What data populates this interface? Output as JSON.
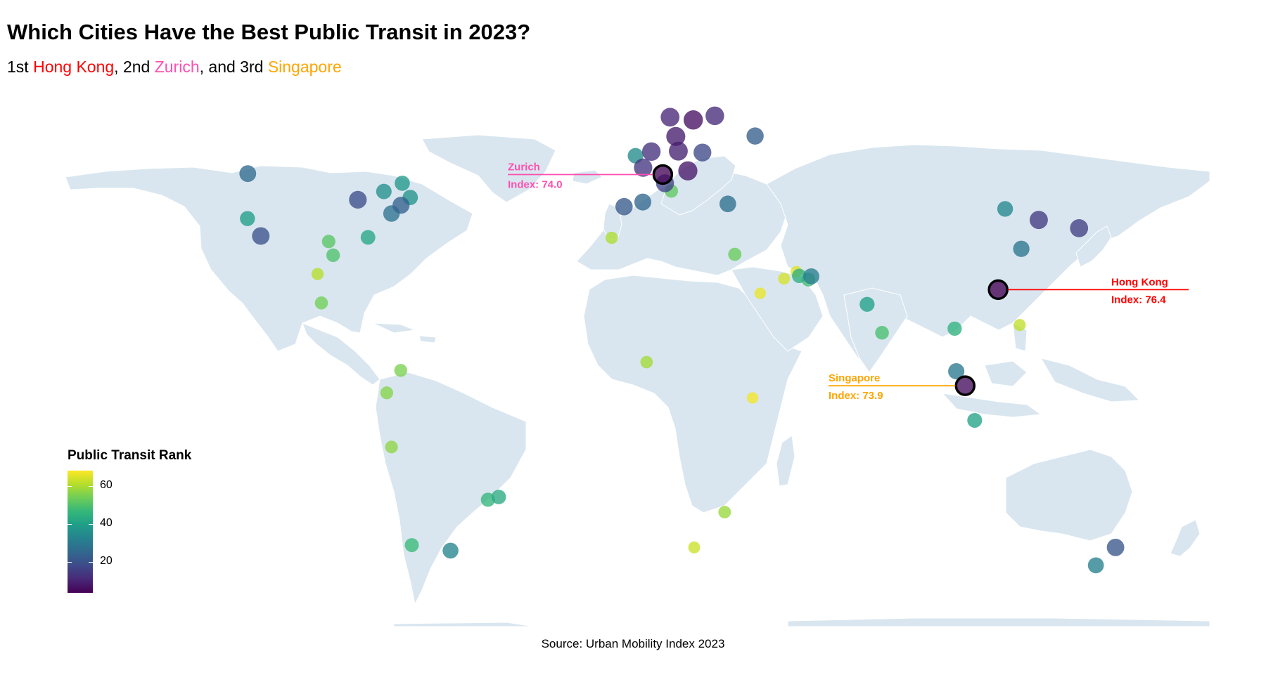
{
  "title": "Which Cities Have the Best Public Transit in 2023?",
  "subtitle": {
    "p1": "1st ",
    "first": "Hong Kong",
    "p2": ", 2nd ",
    "second": "Zurich",
    "p3": ", and 3rd ",
    "third": "Singapore"
  },
  "colors": {
    "first": "#ff0000",
    "second": "#ff4fb0",
    "third": "#ffa500",
    "land": "#d9e6ef",
    "highlight_ring": "#000000"
  },
  "legend": {
    "title": "Public Transit Rank",
    "ticks": [
      "60",
      "40",
      "20"
    ],
    "tick_values": [
      60,
      40,
      20
    ],
    "range": [
      1,
      65
    ],
    "palette": "viridis"
  },
  "source": "Source: Urban Mobility Index 2023",
  "annotations": [
    {
      "label": "Hong Kong",
      "index_text": "Index: 76.4",
      "lat": 22.3,
      "lon": 114.2,
      "color_key": "first"
    },
    {
      "label": "Zurich",
      "index_text": "Index: 74.0",
      "lat": 47.4,
      "lon": 8.5,
      "color_key": "second"
    },
    {
      "label": "Singapore",
      "index_text": "Index: 73.9",
      "lat": 1.35,
      "lon": 103.8,
      "color_key": "third"
    }
  ],
  "chart_data": {
    "type": "scatter",
    "x_variable": "longitude",
    "y_variable": "latitude",
    "color_variable": "Public Transit Rank",
    "points": [
      {
        "lat": 22.3,
        "lon": 114.2,
        "rank": 1
      },
      {
        "lat": 47.4,
        "lon": 8.5,
        "rank": 2
      },
      {
        "lat": 1.35,
        "lon": 103.8,
        "rank": 3
      },
      {
        "lat": 59.3,
        "lon": 18.1,
        "rank": 4
      },
      {
        "lat": 48.2,
        "lon": 16.4,
        "rank": 5
      },
      {
        "lat": 55.7,
        "lon": 12.6,
        "rank": 6
      },
      {
        "lat": 52.5,
        "lon": 13.4,
        "rank": 7
      },
      {
        "lat": 59.9,
        "lon": 10.8,
        "rank": 8
      },
      {
        "lat": 60.2,
        "lon": 24.9,
        "rank": 9
      },
      {
        "lat": 52.4,
        "lon": 4.9,
        "rank": 10
      },
      {
        "lat": 48.9,
        "lon": 2.3,
        "rank": 11
      },
      {
        "lat": 37.5,
        "lon": 127.0,
        "rank": 12
      },
      {
        "lat": 35.7,
        "lon": 139.7,
        "rank": 13
      },
      {
        "lat": 45.5,
        "lon": 9.2,
        "rank": 14
      },
      {
        "lat": 52.2,
        "lon": 21.0,
        "rank": 15
      },
      {
        "lat": 41.9,
        "lon": -87.6,
        "rank": 16
      },
      {
        "lat": 34.0,
        "lon": -118.2,
        "rank": 17
      },
      {
        "lat": -33.9,
        "lon": 151.2,
        "rank": 18
      },
      {
        "lat": 40.4,
        "lon": -3.7,
        "rank": 19
      },
      {
        "lat": 55.8,
        "lon": 37.6,
        "rank": 20
      },
      {
        "lat": 40.7,
        "lon": -74.0,
        "rank": 21
      },
      {
        "lat": 41.4,
        "lon": 2.2,
        "rank": 22
      },
      {
        "lat": 47.6,
        "lon": -122.3,
        "rank": 23
      },
      {
        "lat": 41.0,
        "lon": 29.0,
        "rank": 24
      },
      {
        "lat": 38.9,
        "lon": -77.0,
        "rank": 25
      },
      {
        "lat": 31.2,
        "lon": 121.5,
        "rank": 26
      },
      {
        "lat": 4.5,
        "lon": 101.0,
        "rank": 27
      },
      {
        "lat": 25.2,
        "lon": 55.3,
        "rank": 28
      },
      {
        "lat": -37.8,
        "lon": 145.0,
        "rank": 29
      },
      {
        "lat": -34.6,
        "lon": -58.4,
        "rank": 30
      },
      {
        "lat": 39.9,
        "lon": 116.4,
        "rank": 31
      },
      {
        "lat": 51.5,
        "lon": -0.1,
        "rank": 32
      },
      {
        "lat": 43.7,
        "lon": -79.4,
        "rank": 33
      },
      {
        "lat": 42.4,
        "lon": -71.1,
        "rank": 34
      },
      {
        "lat": 45.5,
        "lon": -73.6,
        "rank": 35
      },
      {
        "lat": 37.8,
        "lon": -122.4,
        "rank": 36
      },
      {
        "lat": 19.1,
        "lon": 72.9,
        "rank": 37
      },
      {
        "lat": -6.2,
        "lon": 106.8,
        "rank": 38
      },
      {
        "lat": 33.7,
        "lon": -84.4,
        "rank": 39
      },
      {
        "lat": -22.9,
        "lon": -43.2,
        "rank": 40
      },
      {
        "lat": 25.3,
        "lon": 51.5,
        "rank": 41
      },
      {
        "lat": 13.8,
        "lon": 100.5,
        "rank": 42
      },
      {
        "lat": -23.5,
        "lon": -46.6,
        "rank": 43
      },
      {
        "lat": -33.4,
        "lon": -70.6,
        "rank": 44
      },
      {
        "lat": 24.5,
        "lon": 54.4,
        "rank": 45
      },
      {
        "lat": 12.9,
        "lon": 77.6,
        "rank": 46
      },
      {
        "lat": 29.8,
        "lon": -95.4,
        "rank": 47
      },
      {
        "lat": 32.8,
        "lon": -96.8,
        "rank": 48
      },
      {
        "lat": 43.8,
        "lon": 11.2,
        "rank": 49
      },
      {
        "lat": 30.0,
        "lon": 31.2,
        "rank": 50
      },
      {
        "lat": 19.4,
        "lon": -99.1,
        "rank": 51
      },
      {
        "lat": 4.7,
        "lon": -74.1,
        "rank": 52
      },
      {
        "lat": -0.2,
        "lon": -78.5,
        "rank": 53
      },
      {
        "lat": -12.0,
        "lon": -77.0,
        "rank": 54
      },
      {
        "lat": -26.2,
        "lon": 28.0,
        "rank": 55
      },
      {
        "lat": 6.5,
        "lon": 3.4,
        "rank": 56
      },
      {
        "lat": 33.6,
        "lon": -7.6,
        "rank": 57
      },
      {
        "lat": 25.7,
        "lon": -100.3,
        "rank": 58
      },
      {
        "lat": 14.6,
        "lon": 121.0,
        "rank": 59
      },
      {
        "lat": -33.9,
        "lon": 18.4,
        "rank": 60
      },
      {
        "lat": 24.7,
        "lon": 46.7,
        "rank": 61
      },
      {
        "lat": 26.2,
        "lon": 50.6,
        "rank": 62
      },
      {
        "lat": 21.5,
        "lon": 39.2,
        "rank": 63
      },
      {
        "lat": -1.3,
        "lon": 36.8,
        "rank": 64
      }
    ]
  }
}
